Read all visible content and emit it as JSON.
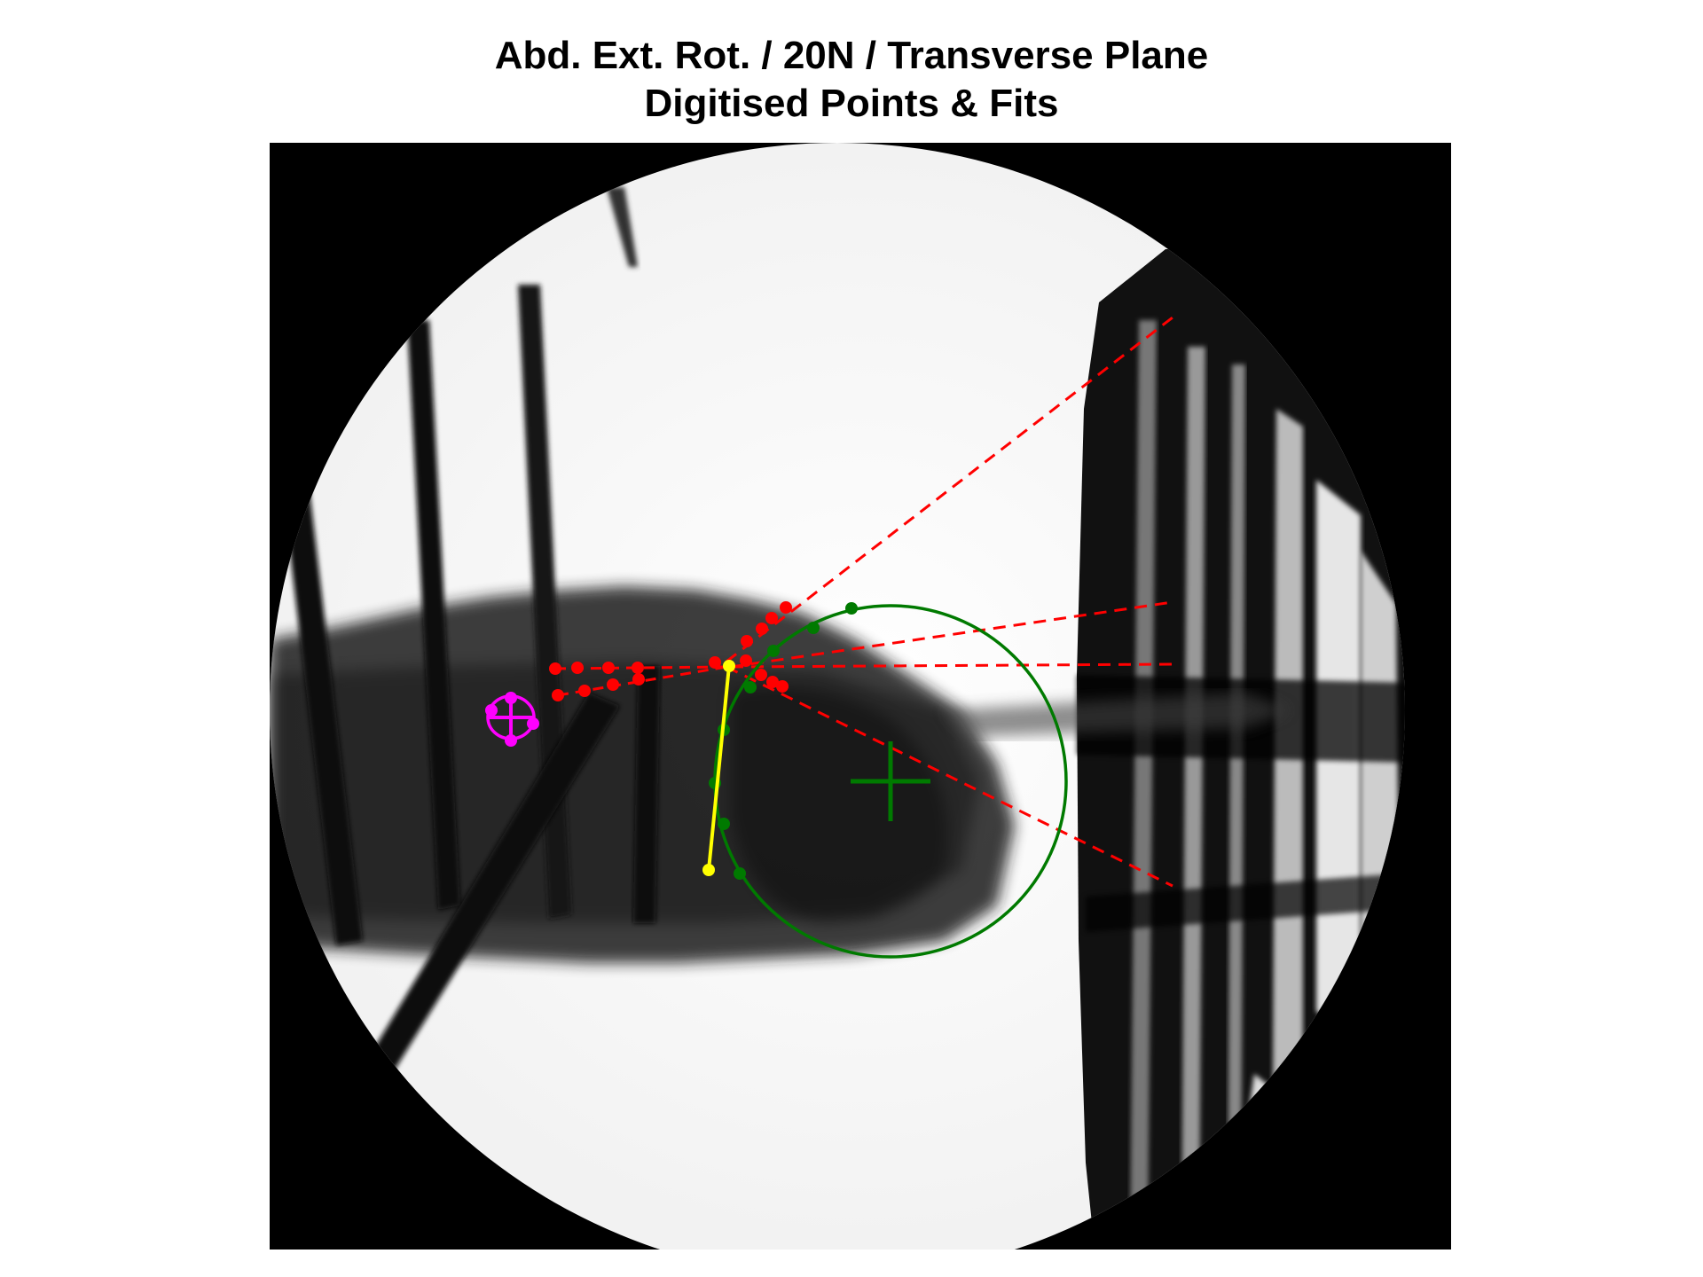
{
  "title": {
    "line1": "Abd. Ext. Rot. / 20N / Transverse Plane",
    "line2": "Digitised Points & Fits"
  },
  "colors": {
    "background": "#ffffff",
    "image_dark": "#000000",
    "red_points": "#ff0000",
    "green_points": "#007a00",
    "yellow_segment": "#ffff00",
    "magenta_marker": "#ff00ff"
  }
}
